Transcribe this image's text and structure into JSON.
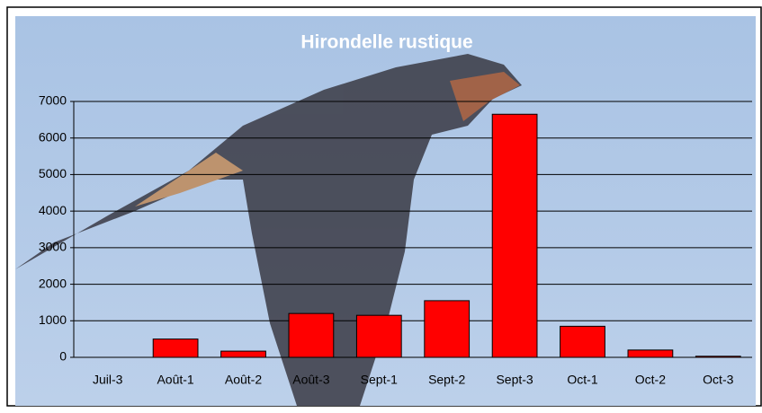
{
  "chart_data": {
    "type": "bar",
    "title": "Hirondelle rustique",
    "categories": [
      "Juil-3",
      "Août-1",
      "Août-2",
      "Août-3",
      "Sept-1",
      "Sept-2",
      "Sept-3",
      "Oct-1",
      "Oct-2",
      "Oct-3"
    ],
    "values": [
      0,
      500,
      170,
      1200,
      1150,
      1550,
      6650,
      850,
      200,
      30
    ],
    "color": "#ff0000",
    "ylim": [
      0,
      7000
    ],
    "yticks": [
      0,
      1000,
      2000,
      3000,
      4000,
      5000,
      6000,
      7000
    ],
    "grid": true
  }
}
